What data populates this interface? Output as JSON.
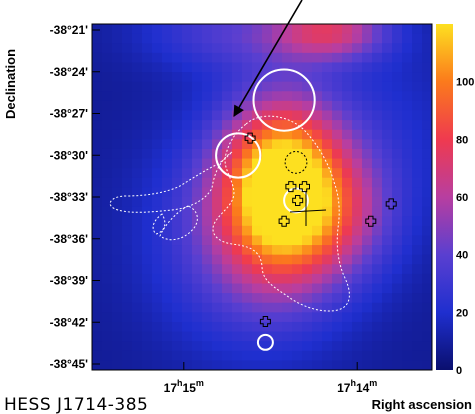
{
  "chart_data": {
    "type": "heatmap",
    "title": "",
    "xlabel": "Right ascension",
    "ylabel": "Declination",
    "x_ticks": [
      {
        "h": "17",
        "m": "15"
      },
      {
        "h": "17",
        "m": "14"
      }
    ],
    "y_ticks": [
      "-38°21'",
      "-38°24'",
      "-38°27'",
      "-38°30'",
      "-38°33'",
      "-38°36'",
      "-38°39'",
      "-38°42'",
      "-38°45'"
    ],
    "colorbar": {
      "ticks": [
        100,
        80,
        60,
        40,
        20,
        0
      ],
      "range": [
        0,
        120
      ],
      "colormap": [
        "#0a0f6e",
        "#1f2fcf",
        "#5a3fd0",
        "#b83ea0",
        "#ef3a4f",
        "#fb7a1c",
        "#fde020"
      ]
    },
    "map": {
      "background_level": 8,
      "blobs": [
        {
          "x": 0.56,
          "y": 0.47,
          "amp": 108,
          "sx": 0.12,
          "sy": 0.17
        },
        {
          "x": 0.48,
          "y": 0.6,
          "amp": 40,
          "sx": 0.2,
          "sy": 0.22
        },
        {
          "x": 0.74,
          "y": 0.55,
          "amp": 30,
          "sx": 0.12,
          "sy": 0.13
        },
        {
          "x": 0.7,
          "y": 0.02,
          "amp": 55,
          "sx": 0.12,
          "sy": 0.06
        },
        {
          "x": 0.4,
          "y": 0.02,
          "amp": 25,
          "sx": 0.18,
          "sy": 0.08
        },
        {
          "x": 0.82,
          "y": 0.3,
          "amp": 12,
          "sx": 0.2,
          "sy": 0.2
        }
      ]
    },
    "circles_white": [
      {
        "ra_frac": 0.565,
        "dec_frac": 0.22,
        "r": 0.09
      },
      {
        "ra_frac": 0.43,
        "dec_frac": 0.38,
        "r": 0.065
      },
      {
        "ra_frac": 0.6,
        "dec_frac": 0.51,
        "r": 0.035
      },
      {
        "ra_frac": 0.51,
        "dec_frac": 0.92,
        "r": 0.022
      }
    ],
    "circle_dotted_black": {
      "ra_frac": 0.6,
      "dec_frac": 0.4,
      "r": 0.032
    },
    "crosses": [
      {
        "ra_frac": 0.465,
        "dec_frac": 0.33,
        "label_style": "thin"
      },
      {
        "ra_frac": 0.585,
        "dec_frac": 0.47
      },
      {
        "ra_frac": 0.625,
        "dec_frac": 0.47
      },
      {
        "ra_frac": 0.605,
        "dec_frac": 0.51
      },
      {
        "ra_frac": 0.565,
        "dec_frac": 0.57
      },
      {
        "ra_frac": 0.82,
        "dec_frac": 0.57
      },
      {
        "ra_frac": 0.88,
        "dec_frac": 0.52
      },
      {
        "ra_frac": 0.51,
        "dec_frac": 0.86
      }
    ],
    "caption": "HESS J1714-385"
  }
}
